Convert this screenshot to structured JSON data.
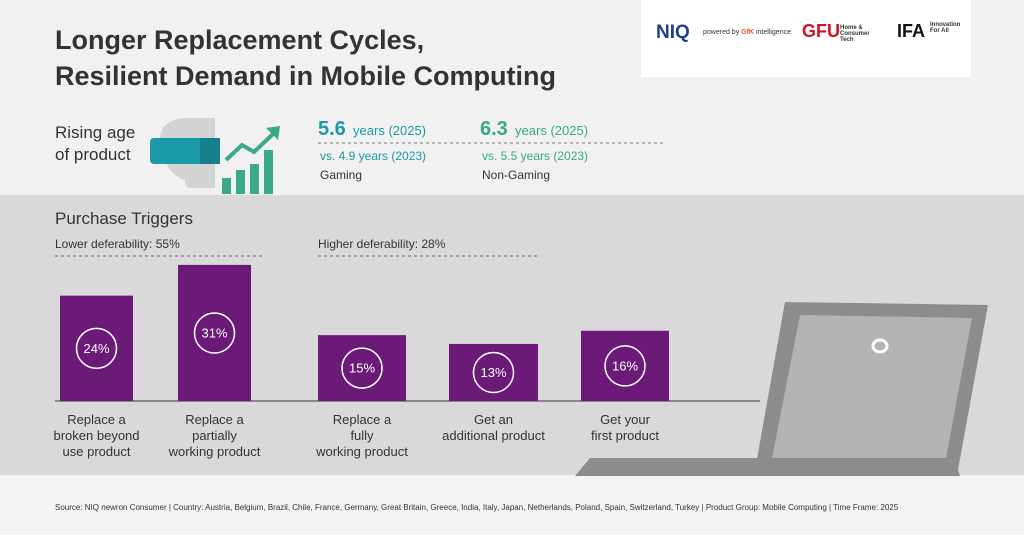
{
  "header": {
    "title_lines": [
      "Longer Replacement Cycles,",
      "Resilient Demand in Mobile Computing"
    ]
  },
  "logos": {
    "niq": "NIQ",
    "powered": "powered by",
    "gfk": "GfK",
    "intelligence": "intelligence",
    "gfu": "GFU",
    "gfu_sub": "Home & Consumer Tech",
    "ifa": "IFA",
    "ifa_sub": "Innovation For All"
  },
  "age": {
    "label": "Rising age of product",
    "stats": [
      {
        "value": "5.6",
        "unit": "years (2025)",
        "previous": "vs. 4.9 years (2023)",
        "segment": "Gaming"
      },
      {
        "value": "6.3",
        "unit": "years (2025)",
        "previous": "vs. 5.5 years (2023)",
        "segment": "Non-Gaming"
      }
    ]
  },
  "chart_data": {
    "type": "bar",
    "title": "Purchase Triggers",
    "annotations": [
      "Lower deferability: 55%",
      "Higher deferability: 28%"
    ],
    "categories": [
      "Replace a\nbroken beyond\nuse product",
      "Replace a\npartially\nworking product",
      "Replace a\nfully\nworking product",
      "Get an\nadditional product",
      "Get your\nfirst product"
    ],
    "values": [
      24,
      31,
      15,
      13,
      16
    ],
    "value_labels": [
      "24%",
      "31%",
      "15%",
      "13%",
      "16%"
    ],
    "color": "#6b1a78"
  },
  "footer": {
    "source": "Source: NIQ newron Consumer | Country: Austria, Belgium, Brazil, Chile, France, Germany, Great Britain, Greece, India, Italy, Japan, Netherlands, Poland, Spain, Switzerland, Turkey | Product Group: Mobile Computing | Time Frame: 2025"
  }
}
